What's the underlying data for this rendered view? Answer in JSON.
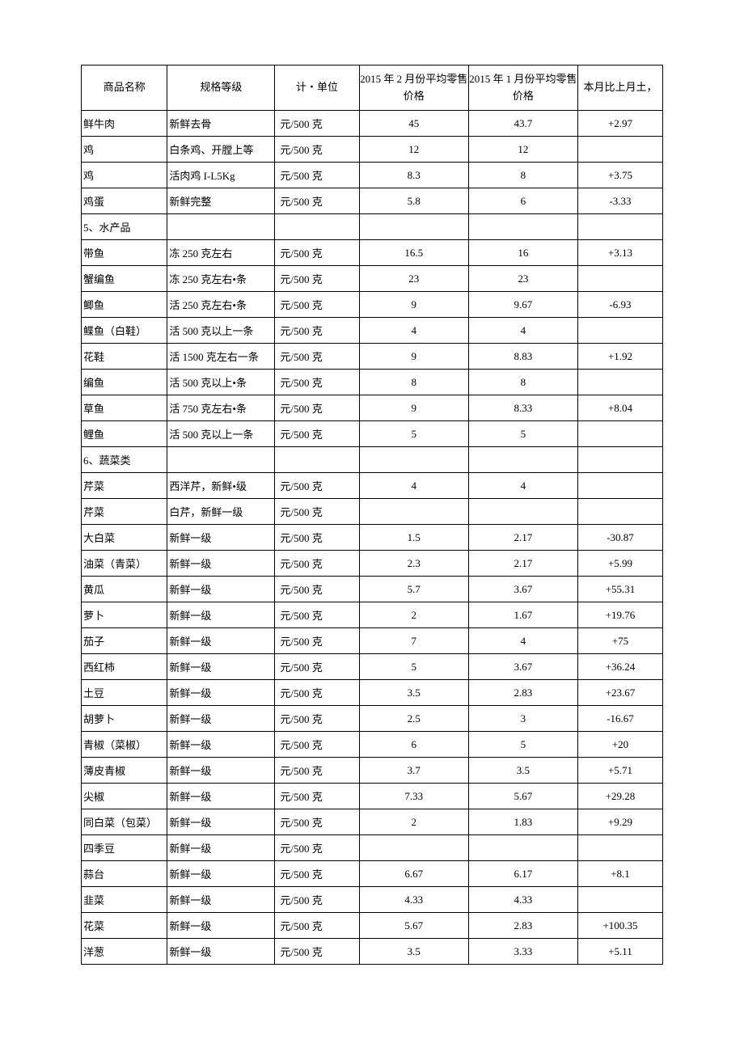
{
  "header": {
    "c1": "商品名称",
    "c2": "规格等级",
    "c3": "计・单位",
    "c4": "2015 年 2 月份平均零售价格",
    "c5": "2015 年 1 月份平均零售价格",
    "c6": "本月比上月土，"
  },
  "rows": [
    {
      "name": "鲜牛肉",
      "spec": "新鲜去骨",
      "unit": "元/500 克",
      "feb": "45",
      "jan": "43.7",
      "chg": "+2.97"
    },
    {
      "name": "鸡",
      "spec": "白条鸡、开膛上等",
      "unit": "元/500 克",
      "feb": "12",
      "jan": "12",
      "chg": ""
    },
    {
      "name": "鸡",
      "spec": "活肉鸡 I-L5Kg",
      "unit": "元/500 克",
      "feb": "8.3",
      "jan": "8",
      "chg": "+3.75"
    },
    {
      "name": "鸡蛋",
      "spec": "新鲜完整",
      "unit": "元/500 克",
      "feb": "5.8",
      "jan": "6",
      "chg": "-3.33"
    },
    {
      "name": "5、水产品",
      "spec": "",
      "unit": "",
      "feb": "",
      "jan": "",
      "chg": ""
    },
    {
      "name": "带鱼",
      "spec": "冻 250 克左右",
      "unit": "元/500 克",
      "feb": "16.5",
      "jan": "16",
      "chg": "+3.13"
    },
    {
      "name": "蟹编鱼",
      "spec": "冻 250 克左右•条",
      "unit": "元/500 克",
      "feb": "23",
      "jan": "23",
      "chg": ""
    },
    {
      "name": "鲫鱼",
      "spec": "活 250 克左右•条",
      "unit": "元/500 克",
      "feb": "9",
      "jan": "9.67",
      "chg": "-6.93"
    },
    {
      "name": "鲽鱼（白鞋）",
      "spec": "活 500 克以上一条",
      "unit": "元/500 克",
      "feb": "4",
      "jan": "4",
      "chg": ""
    },
    {
      "name": "花鞋",
      "spec": "活 1500 克左右一条",
      "unit": "元/500 克",
      "feb": "9",
      "jan": "8.83",
      "chg": "+1.92"
    },
    {
      "name": "编鱼",
      "spec": "活 500 克以上•条",
      "unit": "元/500 克",
      "feb": "8",
      "jan": "8",
      "chg": ""
    },
    {
      "name": "草鱼",
      "spec": "活 750 克左右•条",
      "unit": "元/500 克",
      "feb": "9",
      "jan": "8.33",
      "chg": "+8.04"
    },
    {
      "name": "鲤鱼",
      "spec": "活 500 克以上一条",
      "unit": "元/500 克",
      "feb": "5",
      "jan": "5",
      "chg": ""
    },
    {
      "name": "6、蔬菜类",
      "spec": "",
      "unit": "",
      "feb": "",
      "jan": "",
      "chg": ""
    },
    {
      "name": "芹菜",
      "spec": "西洋芹，新鲜•级",
      "unit": "元/500 克",
      "feb": "4",
      "jan": "4",
      "chg": ""
    },
    {
      "name": "芹菜",
      "spec": "白芹，新鲜一级",
      "unit": "元/500 克",
      "feb": "",
      "jan": "",
      "chg": ""
    },
    {
      "name": "大白菜",
      "spec": "新鲜一级",
      "unit": "元/500 克",
      "feb": "1.5",
      "jan": "2.17",
      "chg": "-30.87"
    },
    {
      "name": "油菜（青菜）",
      "spec": "新鲜一级",
      "unit": "元/500 克",
      "feb": "2.3",
      "jan": "2.17",
      "chg": "+5.99"
    },
    {
      "name": "黄瓜",
      "spec": "新鲜一级",
      "unit": "元/500 克",
      "feb": "5.7",
      "jan": "3.67",
      "chg": "+55.31"
    },
    {
      "name": "萝卜",
      "spec": "新鲜一级",
      "unit": "元/500 克",
      "feb": "2",
      "jan": "1.67",
      "chg": "+19.76"
    },
    {
      "name": "茄子",
      "spec": "新鲜一级",
      "unit": "元/500 克",
      "feb": "7",
      "jan": "4",
      "chg": "+75"
    },
    {
      "name": "西红柿",
      "spec": "新鲜一级",
      "unit": "元/500 克",
      "feb": "5",
      "jan": "3.67",
      "chg": "+36.24"
    },
    {
      "name": "土豆",
      "spec": "新鲜一级",
      "unit": "元/500 克",
      "feb": "3.5",
      "jan": "2.83",
      "chg": "+23.67"
    },
    {
      "name": "胡萝卜",
      "spec": "新鲜一级",
      "unit": "元/500 克",
      "feb": "2.5",
      "jan": "3",
      "chg": "-16.67"
    },
    {
      "name": "青椒（菜椒）",
      "spec": "新鲜一级",
      "unit": "元/500 克",
      "feb": "6",
      "jan": "5",
      "chg": "+20"
    },
    {
      "name": "薄皮青椒",
      "spec": "新鲜一级",
      "unit": "元/500 克",
      "feb": "3.7",
      "jan": "3.5",
      "chg": "+5.71"
    },
    {
      "name": "尖椒",
      "spec": "新鲜一级",
      "unit": "元/500 克",
      "feb": "7.33",
      "jan": "5.67",
      "chg": "+29.28"
    },
    {
      "name": "同白菜（包菜）",
      "spec": "新鲜一级",
      "unit": "元/500 克",
      "feb": "2",
      "jan": "1.83",
      "chg": "+9.29"
    },
    {
      "name": "四季豆",
      "spec": "新鲜一级",
      "unit": "元/500 克",
      "feb": "",
      "jan": "",
      "chg": ""
    },
    {
      "name": "蒜台",
      "spec": "新鲜一级",
      "unit": "元/500 克",
      "feb": "6.67",
      "jan": "6.17",
      "chg": "+8.1"
    },
    {
      "name": "韭菜",
      "spec": "新鲜一级",
      "unit": "元/500 克",
      "feb": "4.33",
      "jan": "4.33",
      "chg": ""
    },
    {
      "name": "花菜",
      "spec": "新鲜一级",
      "unit": "元/500 克",
      "feb": "5.67",
      "jan": "2.83",
      "chg": "+100.35"
    },
    {
      "name": "洋葱",
      "spec": "新鲜一级",
      "unit": "元/500 克",
      "feb": "3.5",
      "jan": "3.33",
      "chg": "+5.11"
    }
  ]
}
